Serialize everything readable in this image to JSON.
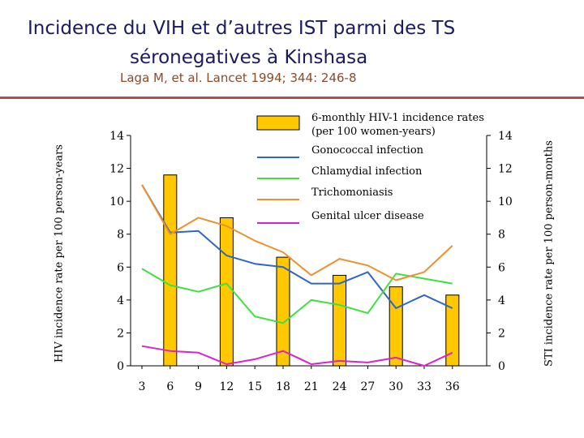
{
  "header": {
    "title_line1": "Incidence du VIH et d’autres IST parmi des TS",
    "title_line2": "séronegatives à Kinshasa",
    "reference": "Laga M, et al. Lancet 1994; 344: 246-8"
  },
  "colors": {
    "hiv_bar": "#FFC800",
    "gonococcal": "#2E66C8",
    "chlamydial": "#3FE040",
    "trichomoniasis": "#F0902A",
    "genital_ulcer": "#E020D0"
  },
  "chart_data": {
    "type": "bar",
    "x": [
      3,
      6,
      9,
      12,
      15,
      18,
      21,
      24,
      27,
      30,
      33,
      36
    ],
    "xticks": [
      "3",
      "6",
      "9",
      "12",
      "15",
      "18",
      "21",
      "24",
      "27",
      "30",
      "33",
      "36"
    ],
    "ylabel_left": "HIV incidence rate per 100 person-years",
    "ylabel_right": "STI incidence rate per 100 person-months",
    "ylim_left": [
      0,
      14
    ],
    "ylim_right": [
      0,
      14
    ],
    "yticks_left": [
      "0",
      "2",
      "4",
      "6",
      "8",
      "10",
      "12",
      "14"
    ],
    "yticks_right": [
      "0",
      "2",
      "4",
      "6",
      "8",
      "10",
      "12",
      "14"
    ],
    "legend_placement": "top-center",
    "grid": false,
    "bars": {
      "name": "6-monthly HIV-1 incidence rates (per 100 women-years)",
      "x": [
        6,
        12,
        18,
        24,
        30,
        36
      ],
      "values": [
        11.6,
        9.0,
        6.6,
        5.5,
        4.8,
        4.3
      ]
    },
    "series": [
      {
        "name": "Gonococcal infection",
        "key": "gonococcal",
        "values": [
          11.0,
          8.1,
          8.2,
          6.7,
          6.2,
          6.0,
          5.0,
          5.0,
          5.7,
          3.5,
          4.3,
          3.5
        ]
      },
      {
        "name": "Chlamydial infection",
        "key": "chlamydial",
        "values": [
          5.9,
          4.9,
          4.5,
          5.0,
          3.0,
          2.6,
          4.0,
          3.7,
          3.2,
          5.6,
          5.3,
          5.0
        ]
      },
      {
        "name": "Trichomoniasis",
        "key": "trichomoniasis",
        "values": [
          11.0,
          8.0,
          9.0,
          8.5,
          7.6,
          6.9,
          5.5,
          6.5,
          6.1,
          5.2,
          5.7,
          7.3
        ]
      },
      {
        "name": "Genital ulcer disease",
        "key": "genital_ulcer",
        "values": [
          1.2,
          0.9,
          0.8,
          0.1,
          0.4,
          0.9,
          0.1,
          0.3,
          0.2,
          0.5,
          0.0,
          0.8
        ]
      }
    ]
  }
}
